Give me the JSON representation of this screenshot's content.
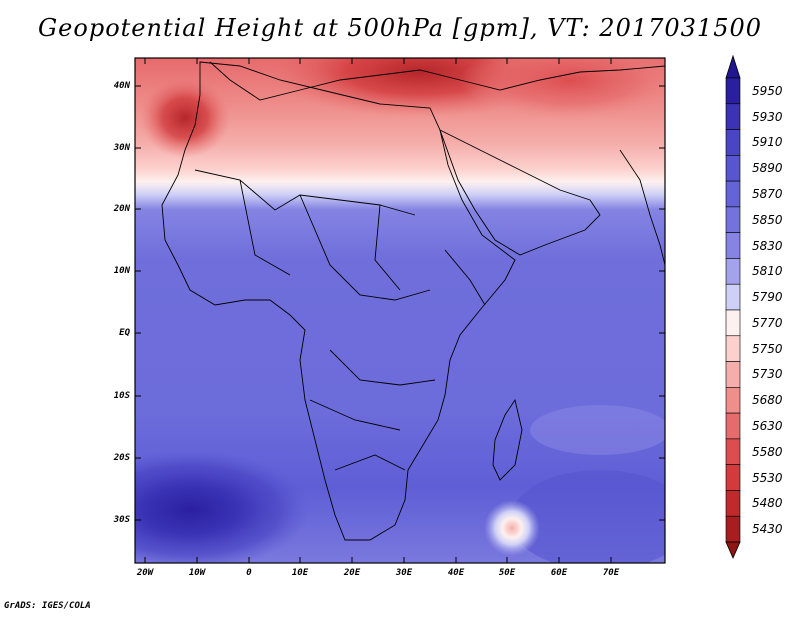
{
  "title": "Geopotential Height at 500hPa [gpm], VT: 2017031500",
  "footer": "GrADS: IGES/COLA",
  "lat_labels": [
    "40N",
    "30N",
    "20N",
    "10N",
    "EQ",
    "10S",
    "20S",
    "30S"
  ],
  "lon_labels": [
    "20W",
    "10W",
    "0",
    "10E",
    "20E",
    "30E",
    "40E",
    "50E",
    "60E",
    "70E"
  ],
  "colorbar": {
    "levels": [
      "5950",
      "5930",
      "5910",
      "5890",
      "5870",
      "5850",
      "5830",
      "5810",
      "5790",
      "5770",
      "5750",
      "5730",
      "5680",
      "5630",
      "5580",
      "5530",
      "5480",
      "5430"
    ],
    "colors": [
      "#2a1fa0",
      "#3a33b5",
      "#4a45c4",
      "#5755cf",
      "#6463d8",
      "#7473dd",
      "#8584e3",
      "#a3a3ec",
      "#cfd0f7",
      "#fdf1ef",
      "#fcd1cd",
      "#f5aeab",
      "#ee8f8c",
      "#e66b6c",
      "#dd4d4f",
      "#d23a3c",
      "#c02a2c",
      "#a81d20"
    ],
    "top_arrow_color": "#1f1690",
    "bottom_arrow_color": "#8f1414"
  }
}
